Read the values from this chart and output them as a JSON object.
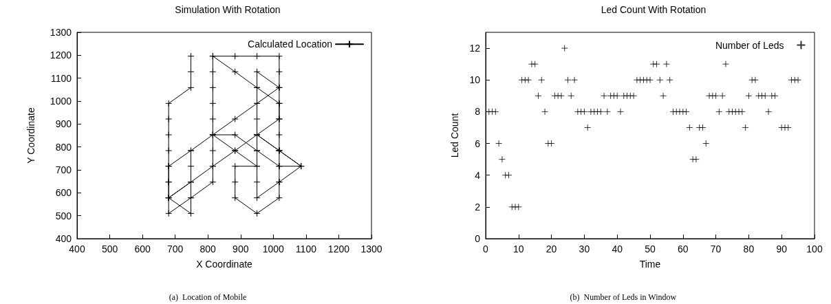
{
  "chart_data": [
    {
      "type": "line",
      "title": "Simulation With Rotation",
      "xlabel": "X Coordinate",
      "ylabel": "Y Coordinate",
      "xlim": [
        400,
        1300
      ],
      "xticks": [
        400,
        500,
        600,
        700,
        800,
        900,
        1000,
        1100,
        1200,
        1300
      ],
      "ylim": [
        400,
        1300
      ],
      "yticks": [
        400,
        500,
        600,
        700,
        800,
        900,
        1000,
        1100,
        1200,
        1300
      ],
      "grid": false,
      "legend": "top right",
      "marker": "cross",
      "line_style": "solid",
      "annotations": [
        "(a)  Location of Mobile"
      ],
      "series": [
        {
          "name": "Calculated Location",
          "color": "#000000",
          "x": [
            748,
            748,
            748,
            680,
            680,
            680,
            680,
            680,
            680,
            680,
            680,
            748,
            815,
            815,
            815,
            815,
            815,
            815,
            815,
            815,
            815,
            883,
            950,
            1018,
            1018,
            1018,
            1018,
            1018,
            1018,
            1018,
            1018,
            1018,
            1018,
            950,
            883,
            883,
            883,
            950,
            883,
            815,
            883,
            950,
            1018,
            1085,
            1018,
            950,
            950,
            950,
            950,
            950,
            950,
            950,
            950,
            950,
            1018,
            950,
            883,
            815,
            748,
            680,
            680,
            680,
            748,
            748,
            748,
            748,
            748,
            748,
            680,
            748,
            815,
            883,
            950,
            1018,
            1085,
            1018,
            950,
            1018,
            1018,
            950,
            883,
            815
          ],
          "values": [
            1196,
            1128,
            1059,
            990,
            922,
            853,
            784,
            716,
            647,
            578,
            510,
            578,
            647,
            716,
            784,
            853,
            922,
            990,
            1059,
            1128,
            1196,
            1196,
            1196,
            1196,
            1128,
            1059,
            990,
            922,
            853,
            784,
            716,
            647,
            578,
            510,
            578,
            647,
            716,
            716,
            784,
            853,
            853,
            784,
            716,
            716,
            647,
            578,
            647,
            716,
            784,
            853,
            922,
            990,
            1059,
            1128,
            1059,
            990,
            922,
            853,
            784,
            716,
            647,
            578,
            510,
            578,
            647,
            716,
            784,
            647,
            578,
            647,
            716,
            784,
            853,
            784,
            716,
            784,
            853,
            922,
            990,
            1059,
            1128,
            1196
          ]
        }
      ]
    },
    {
      "type": "scatter",
      "title": "Led Count With Rotation",
      "xlabel": "Time",
      "ylabel": "Led Count",
      "xlim": [
        0,
        100
      ],
      "xticks": [
        0,
        10,
        20,
        30,
        40,
        50,
        60,
        70,
        80,
        90,
        100
      ],
      "ylim": [
        0,
        13
      ],
      "yticks": [
        0,
        2,
        4,
        6,
        8,
        10,
        12
      ],
      "grid": false,
      "legend": "top right",
      "marker": "cross",
      "annotations": [
        "(b)  Number of Leds in Window"
      ],
      "series": [
        {
          "name": "Number of Leds",
          "color": "#000000",
          "x": [
            1,
            2,
            3,
            4,
            5,
            6,
            7,
            8,
            9,
            10,
            11,
            12,
            13,
            14,
            15,
            16,
            17,
            18,
            19,
            20,
            21,
            22,
            23,
            24,
            25,
            26,
            27,
            28,
            29,
            30,
            31,
            32,
            33,
            34,
            35,
            36,
            37,
            38,
            39,
            40,
            41,
            42,
            43,
            44,
            45,
            46,
            47,
            48,
            49,
            50,
            51,
            52,
            53,
            54,
            55,
            56,
            57,
            58,
            59,
            60,
            61,
            62,
            63,
            64,
            65,
            66,
            67,
            68,
            69,
            70,
            71,
            72,
            73,
            74,
            75,
            76,
            77,
            78,
            79,
            80,
            81,
            82,
            83,
            84,
            85,
            86,
            87,
            88,
            89,
            90,
            91,
            92,
            93,
            94,
            95
          ],
          "values": [
            8,
            8,
            8,
            6,
            5,
            4,
            4,
            2,
            2,
            2,
            10,
            10,
            10,
            11,
            11,
            9,
            10,
            8,
            6,
            6,
            9,
            9,
            9,
            12,
            10,
            9,
            10,
            8,
            8,
            8,
            7,
            8,
            8,
            8,
            8,
            9,
            8,
            9,
            9,
            9,
            8,
            9,
            9,
            9,
            9,
            10,
            10,
            10,
            10,
            10,
            11,
            11,
            10,
            9,
            11,
            10,
            8,
            8,
            8,
            8,
            8,
            7,
            5,
            5,
            7,
            7,
            6,
            9,
            9,
            9,
            8,
            9,
            11,
            8,
            8,
            8,
            8,
            8,
            7,
            9,
            10,
            10,
            9,
            9,
            9,
            8,
            9,
            9,
            null,
            7,
            7,
            7,
            10,
            10,
            10
          ]
        }
      ]
    }
  ]
}
